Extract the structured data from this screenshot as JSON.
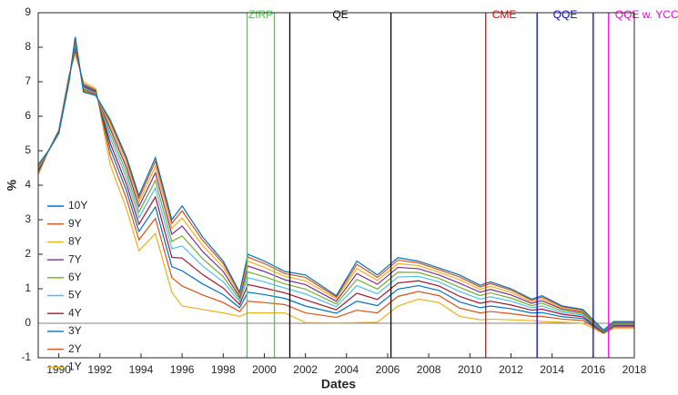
{
  "chart_data": {
    "type": "line",
    "xlabel": "Dates",
    "ylabel": "%",
    "x": [
      1989,
      1989.5,
      1990,
      1990.5,
      1990.8,
      1991.2,
      1991.8,
      1992.5,
      1993.3,
      1993.9,
      1994.7,
      1995.5,
      1996,
      1997,
      1998,
      1998.8,
      1999.2,
      2000,
      2001,
      2002,
      2003.5,
      2004.5,
      2005.5,
      2006.5,
      2007.5,
      2008.5,
      2009.5,
      2010.5,
      2011,
      2012,
      2013,
      2013.5,
      2014.5,
      2015.5,
      2016.5,
      2017,
      2018
    ],
    "xlim": [
      1989,
      2018
    ],
    "xticks": [
      1990,
      1992,
      1994,
      1996,
      1998,
      2000,
      2002,
      2004,
      2006,
      2008,
      2010,
      2012,
      2014,
      2016,
      2018
    ],
    "ylim": [
      -1,
      9
    ],
    "yticks": [
      -1,
      0,
      1,
      2,
      3,
      4,
      5,
      6,
      7,
      8,
      9
    ],
    "zero_line": true,
    "series": [
      {
        "name": "10Y",
        "color": "#0072BD",
        "values": [
          4.6,
          5.0,
          5.5,
          7.0,
          8.3,
          6.7,
          6.6,
          5.9,
          4.8,
          3.7,
          4.8,
          3.0,
          3.4,
          2.5,
          1.8,
          0.9,
          2.0,
          1.8,
          1.5,
          1.4,
          0.8,
          1.8,
          1.4,
          1.9,
          1.8,
          1.6,
          1.4,
          1.1,
          1.2,
          1.0,
          0.7,
          0.8,
          0.5,
          0.4,
          -0.2,
          0.05,
          0.05
        ]
      },
      {
        "name": "9Y",
        "color": "#D95319",
        "values": [
          4.59,
          5.0,
          5.51,
          7.01,
          8.28,
          6.72,
          6.61,
          5.84,
          4.73,
          3.62,
          4.69,
          2.9,
          3.26,
          2.4,
          1.73,
          0.87,
          1.92,
          1.73,
          1.44,
          1.33,
          0.76,
          1.71,
          1.33,
          1.83,
          1.75,
          1.55,
          1.34,
          1.05,
          1.15,
          0.96,
          0.67,
          0.76,
          0.48,
          0.38,
          -0.2,
          0.04,
          0.04
        ]
      },
      {
        "name": "8Y",
        "color": "#EDB120",
        "values": [
          4.56,
          5.0,
          5.51,
          7.02,
          8.24,
          6.74,
          6.62,
          5.74,
          4.62,
          3.51,
          4.54,
          2.75,
          3.05,
          2.25,
          1.62,
          0.82,
          1.8,
          1.62,
          1.36,
          1.23,
          0.71,
          1.59,
          1.24,
          1.73,
          1.67,
          1.48,
          1.26,
          0.98,
          1.07,
          0.89,
          0.63,
          0.71,
          0.44,
          0.35,
          -0.21,
          0.03,
          0.03
        ]
      },
      {
        "name": "7Y",
        "color": "#7E2F8E",
        "values": [
          4.54,
          5.0,
          5.52,
          7.04,
          8.2,
          6.76,
          6.64,
          5.64,
          4.5,
          3.38,
          4.36,
          2.58,
          2.82,
          2.08,
          1.5,
          0.76,
          1.66,
          1.5,
          1.26,
          1.12,
          0.64,
          1.44,
          1.13,
          1.62,
          1.58,
          1.4,
          1.16,
          0.9,
          0.98,
          0.82,
          0.58,
          0.65,
          0.41,
          0.32,
          -0.22,
          0.01,
          0.01
        ]
      },
      {
        "name": "6Y",
        "color": "#77AC30",
        "values": [
          4.51,
          5.0,
          5.53,
          7.06,
          8.15,
          6.79,
          6.66,
          5.51,
          4.35,
          3.22,
          4.14,
          2.37,
          2.53,
          1.87,
          1.35,
          0.69,
          1.49,
          1.35,
          1.14,
          0.99,
          0.56,
          1.27,
          0.99,
          1.48,
          1.47,
          1.3,
          1.04,
          0.8,
          0.88,
          0.73,
          0.51,
          0.58,
          0.36,
          0.28,
          -0.23,
          -0.01,
          -0.01
        ]
      },
      {
        "name": "5Y",
        "color": "#4DBEEE",
        "values": [
          4.48,
          5.0,
          5.54,
          7.08,
          8.1,
          6.82,
          6.68,
          5.38,
          4.2,
          3.06,
          3.92,
          2.16,
          2.24,
          1.66,
          1.2,
          0.62,
          1.32,
          1.2,
          1.02,
          0.85,
          0.48,
          1.09,
          0.85,
          1.34,
          1.36,
          1.2,
          0.92,
          0.7,
          0.77,
          0.64,
          0.45,
          0.5,
          0.31,
          0.24,
          -0.24,
          -0.03,
          -0.03
        ]
      },
      {
        "name": "4Y",
        "color": "#A2142F",
        "values": [
          4.44,
          5.0,
          5.55,
          7.1,
          8.04,
          6.86,
          6.7,
          5.22,
          4.02,
          2.87,
          3.66,
          1.91,
          1.89,
          1.41,
          1.02,
          0.54,
          1.12,
          1.02,
          0.88,
          0.68,
          0.39,
          0.87,
          0.69,
          1.17,
          1.23,
          1.08,
          0.78,
          0.58,
          0.64,
          0.53,
          0.38,
          0.41,
          0.26,
          0.19,
          -0.25,
          -0.05,
          -0.05
        ]
      },
      {
        "name": "3Y",
        "color": "#0072BD",
        "values": [
          4.41,
          5.0,
          5.57,
          7.13,
          7.98,
          6.9,
          6.73,
          5.06,
          3.83,
          2.66,
          3.37,
          1.64,
          1.52,
          1.14,
          0.83,
          0.45,
          0.9,
          0.83,
          0.72,
          0.5,
          0.29,
          0.64,
          0.51,
          0.99,
          1.09,
          0.95,
          0.62,
          0.45,
          0.5,
          0.42,
          0.3,
          0.31,
          0.19,
          0.14,
          -0.27,
          -0.08,
          -0.08
        ]
      },
      {
        "name": "2Y",
        "color": "#D95319",
        "values": [
          4.36,
          5.0,
          5.58,
          7.16,
          7.9,
          6.94,
          6.76,
          4.86,
          3.6,
          2.42,
          3.04,
          1.32,
          1.08,
          0.82,
          0.6,
          0.34,
          0.64,
          0.6,
          0.54,
          0.3,
          0.17,
          0.38,
          0.3,
          0.78,
          0.92,
          0.8,
          0.44,
          0.3,
          0.34,
          0.28,
          0.2,
          0.2,
          0.12,
          0.08,
          -0.28,
          -0.11,
          -0.11
        ]
      },
      {
        "name": "1Y",
        "color": "#EDB120",
        "values": [
          4.3,
          5.0,
          5.6,
          7.2,
          7.8,
          7.0,
          6.8,
          4.6,
          3.3,
          2.1,
          2.6,
          0.9,
          0.5,
          0.4,
          0.3,
          0.2,
          0.3,
          0.3,
          0.3,
          0.02,
          0.01,
          0.02,
          0.03,
          0.5,
          0.7,
          0.6,
          0.2,
          0.1,
          0.12,
          0.1,
          0.08,
          0.05,
          0.03,
          0.0,
          -0.3,
          -0.15,
          -0.15
        ]
      }
    ],
    "events": [
      {
        "label": "ZIRP",
        "color": "#33dd33",
        "x": [
          1999.16,
          2000.49
        ]
      },
      {
        "label": "QE",
        "color": "#000000",
        "x": [
          2001.24,
          2006.16
        ]
      },
      {
        "label": "CME",
        "color": "#ee0000",
        "x": [
          2010.77
        ]
      },
      {
        "label": "QQE",
        "color": "#0000ee",
        "x": [
          2013.27,
          2016.0
        ]
      },
      {
        "label": "QQE w. YCC",
        "color": "#ee00ee",
        "x": [
          2016.75
        ]
      }
    ]
  }
}
